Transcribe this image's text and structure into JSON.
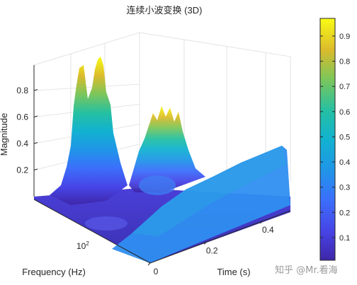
{
  "chart_data": {
    "type": "surface",
    "title": "连续小波变换 (3D)",
    "xlabel": "Time (s)",
    "ylabel": "Frequency (Hz)",
    "zlabel": "Magnitude",
    "x_ticks": [
      "0",
      "0.2",
      "0.4"
    ],
    "x_tick_values": [
      0,
      0.2,
      0.4
    ],
    "xlim": [
      0,
      0.5
    ],
    "y_scale": "log",
    "y_ticks": [
      "10",
      "2"
    ],
    "y_tick_values": [
      100
    ],
    "z_ticks": [
      "0.2",
      "0.4",
      "0.6",
      "0.8"
    ],
    "z_tick_values": [
      0.2,
      0.4,
      0.6,
      0.8
    ],
    "zlim": [
      0,
      0.95
    ],
    "colormap": "parula",
    "colorbar": {
      "ticks": [
        "0.1",
        "0.2",
        "0.3",
        "0.4",
        "0.5",
        "0.6",
        "0.7",
        "0.8",
        "0.9"
      ],
      "tick_values": [
        0.1,
        0.2,
        0.3,
        0.4,
        0.5,
        0.6,
        0.7,
        0.8,
        0.9
      ],
      "range": [
        0.01,
        0.97
      ]
    },
    "ridges": [
      {
        "id": "low-frequency-early",
        "time": 0.05,
        "peak": 0.93
      },
      {
        "id": "low-frequency-mid",
        "time": 0.22,
        "peak": 0.58
      },
      {
        "id": "high-frequency-band",
        "time_range": [
          0.2,
          0.5
        ],
        "level": 0.34
      }
    ],
    "grid": true
  },
  "watermark": "知乎 @Mr.看海"
}
